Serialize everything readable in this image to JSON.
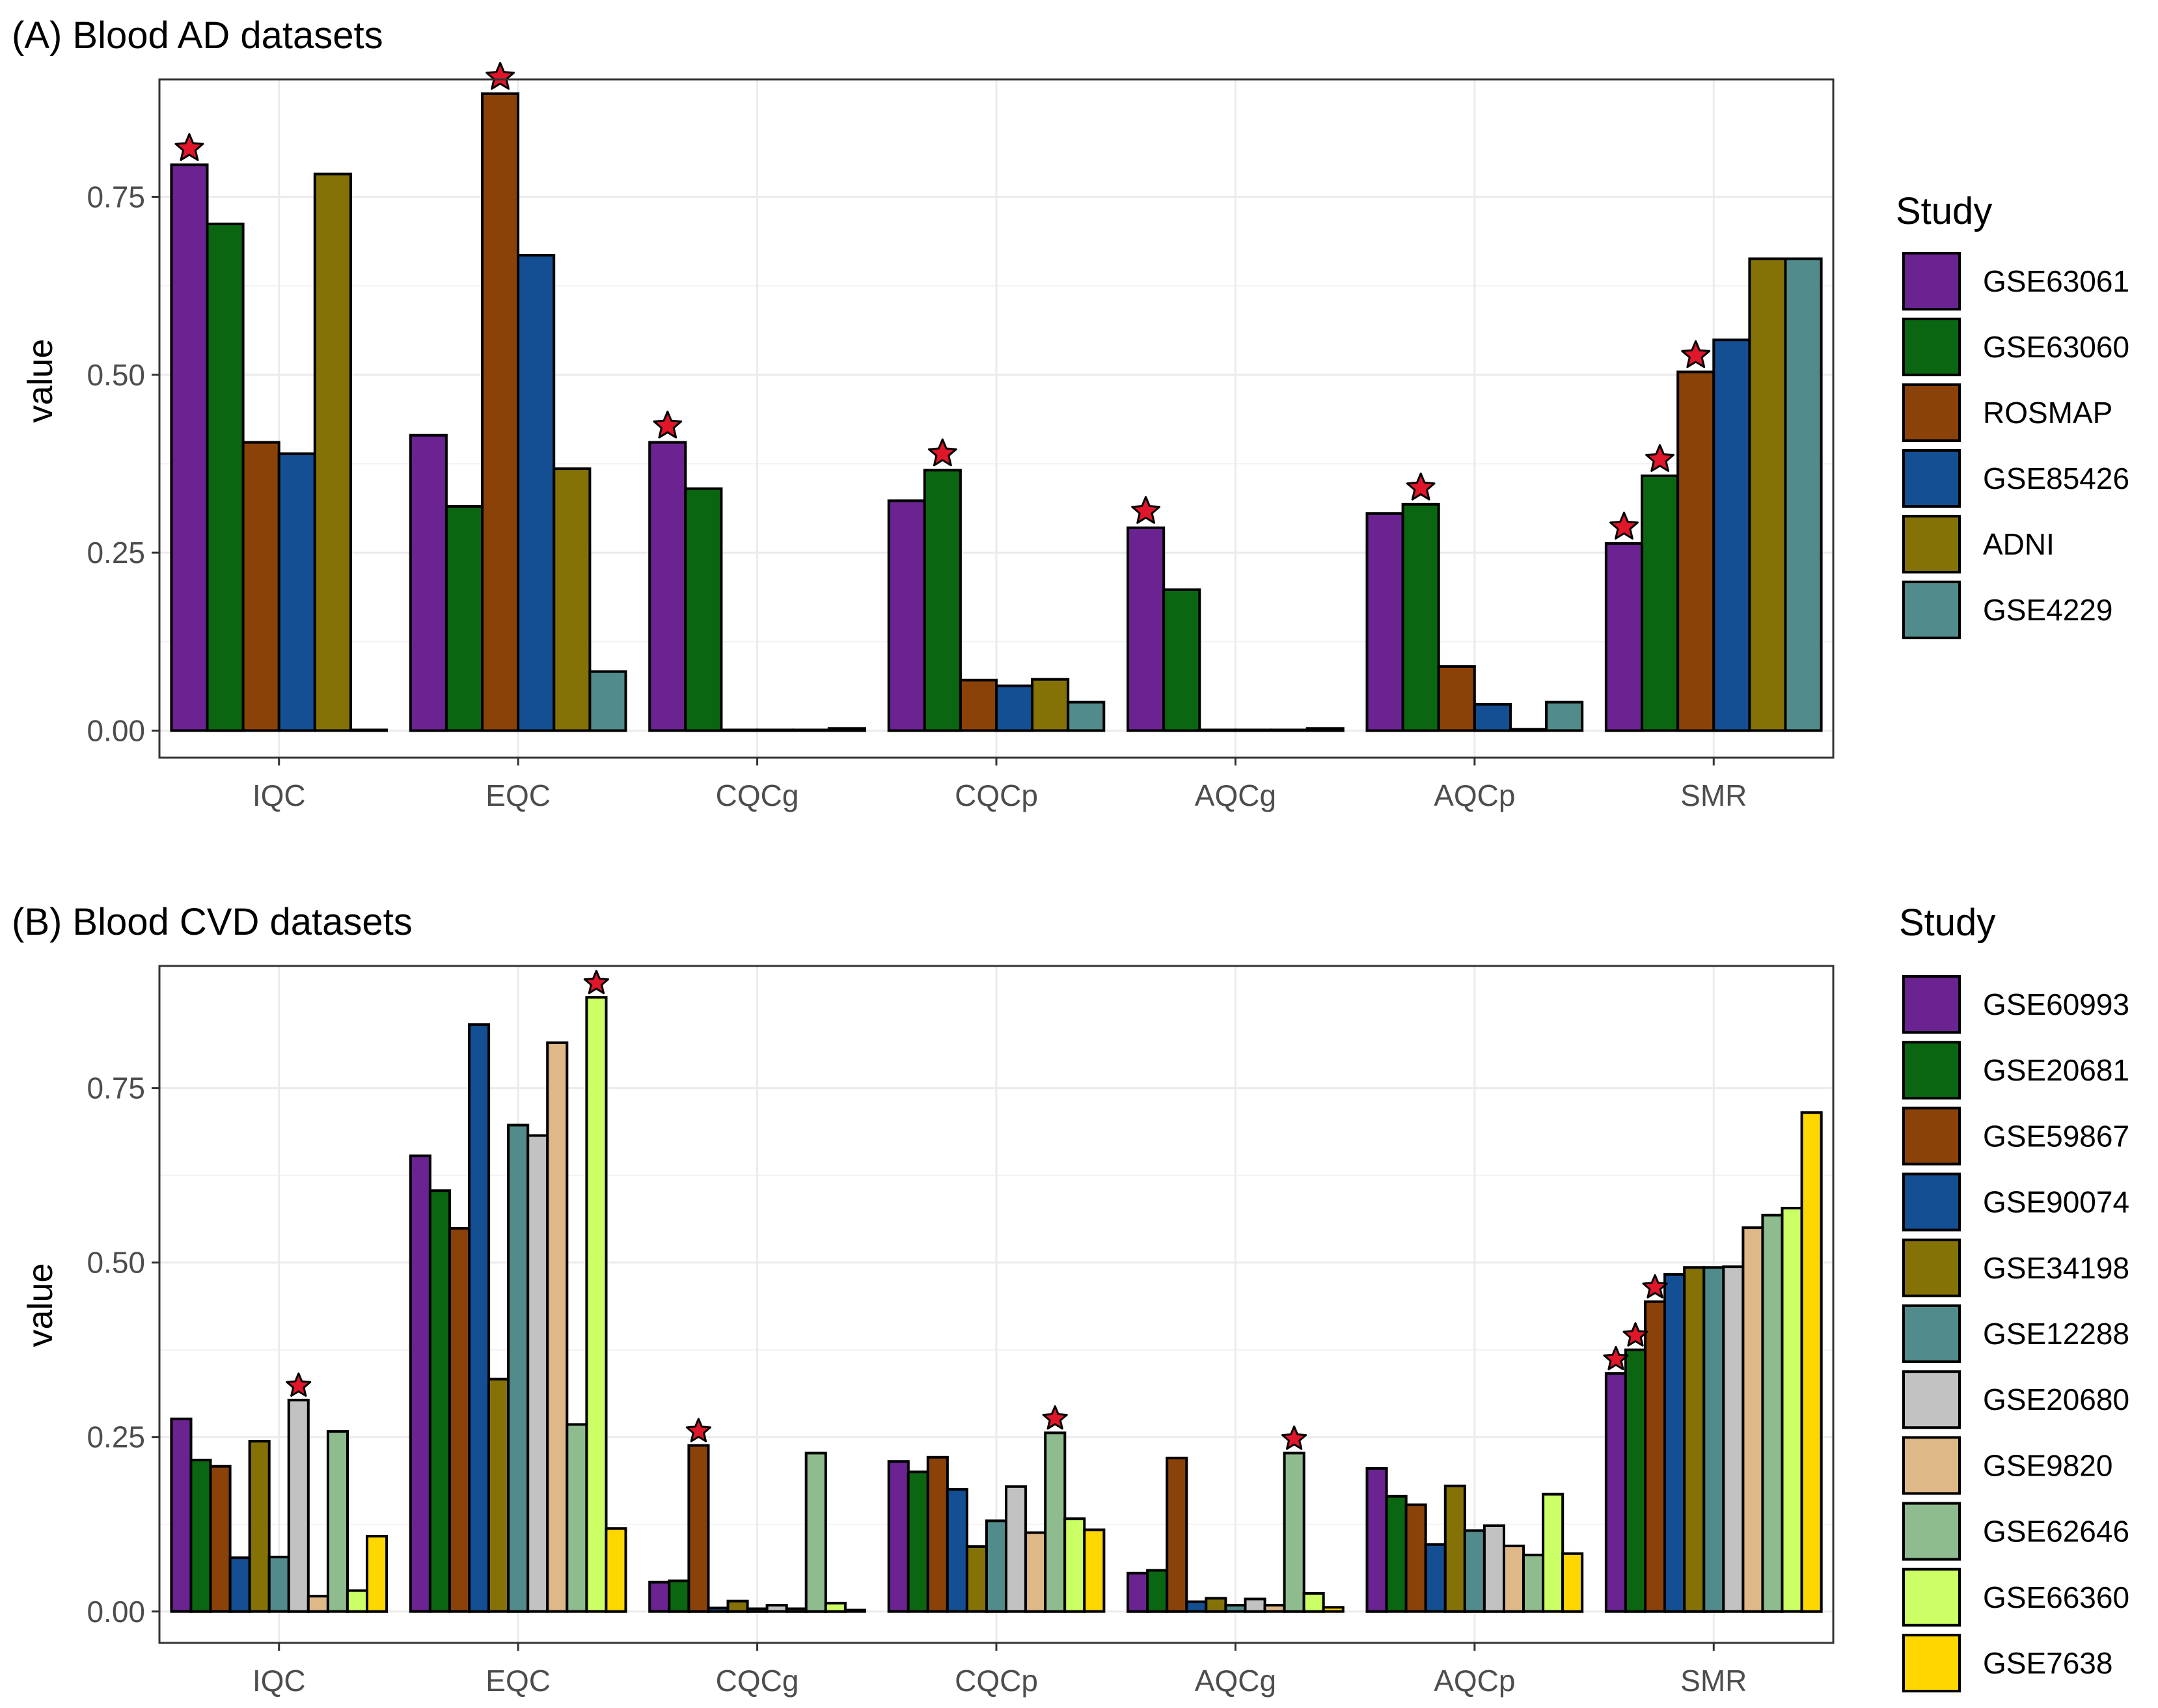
{
  "chart_data": [
    {
      "type": "bar",
      "title": "(A) Blood AD datasets",
      "xlabel": "",
      "ylabel": "value",
      "ylim": [
        -0.038,
        0.915
      ],
      "yticks": [
        "0.00",
        "0.25",
        "0.50",
        "0.75"
      ],
      "legend_title": "Study",
      "legend_position": "right",
      "categories": [
        "IQC",
        "EQC",
        "CQCg",
        "CQCp",
        "AQCg",
        "AQCp",
        "SMR"
      ],
      "series": [
        {
          "name": "GSE63061",
          "color": "#6A2391",
          "values": [
            0.795,
            0.415,
            0.405,
            0.323,
            0.285,
            0.305,
            0.263
          ],
          "stars": [
            true,
            false,
            true,
            false,
            true,
            false,
            true
          ]
        },
        {
          "name": "GSE63060",
          "color": "#0B6611",
          "values": [
            0.712,
            0.315,
            0.34,
            0.366,
            0.198,
            0.318,
            0.358
          ],
          "stars": [
            false,
            false,
            false,
            true,
            false,
            true,
            true
          ]
        },
        {
          "name": "ROSMAP",
          "color": "#8B4209",
          "values": [
            0.405,
            0.895,
            0.001,
            0.071,
            0.001,
            0.09,
            0.504
          ],
          "stars": [
            false,
            true,
            false,
            false,
            false,
            false,
            true
          ]
        },
        {
          "name": "GSE85426",
          "color": "#134F92",
          "values": [
            0.389,
            0.668,
            0.001,
            0.063,
            0.001,
            0.037,
            0.549
          ],
          "stars": [
            false,
            false,
            false,
            false,
            false,
            false,
            false
          ]
        },
        {
          "name": "ADNI",
          "color": "#847207",
          "values": [
            0.782,
            0.368,
            0.001,
            0.072,
            0.001,
            0.002,
            0.663
          ],
          "stars": [
            false,
            false,
            false,
            false,
            false,
            false,
            false
          ]
        },
        {
          "name": "GSE4229",
          "color": "#528B8B",
          "values": [
            0.001,
            0.083,
            0.003,
            0.04,
            0.003,
            0.04,
            0.663
          ],
          "stars": [
            false,
            false,
            false,
            false,
            false,
            false,
            false
          ]
        }
      ]
    },
    {
      "type": "bar",
      "title": "(B) Blood CVD datasets",
      "xlabel": "",
      "ylabel": "value",
      "ylim": [
        -0.045,
        0.925
      ],
      "yticks": [
        "0.00",
        "0.25",
        "0.50",
        "0.75"
      ],
      "legend_title": "Study",
      "legend_position": "right",
      "categories": [
        "IQC",
        "EQC",
        "CQCg",
        "CQCp",
        "AQCg",
        "AQCp",
        "SMR"
      ],
      "series": [
        {
          "name": "GSE60993",
          "color": "#6A2391",
          "values": [
            0.276,
            0.653,
            0.042,
            0.215,
            0.055,
            0.205,
            0.341
          ],
          "stars": [
            false,
            false,
            false,
            false,
            false,
            false,
            true
          ]
        },
        {
          "name": "GSE20681",
          "color": "#0B6611",
          "values": [
            0.217,
            0.603,
            0.044,
            0.2,
            0.059,
            0.165,
            0.375
          ],
          "stars": [
            false,
            false,
            false,
            false,
            false,
            false,
            true
          ]
        },
        {
          "name": "GSE59867",
          "color": "#8B4209",
          "values": [
            0.208,
            0.549,
            0.238,
            0.221,
            0.22,
            0.153,
            0.444
          ],
          "stars": [
            false,
            false,
            true,
            false,
            false,
            false,
            true
          ]
        },
        {
          "name": "GSE90074",
          "color": "#134F92",
          "values": [
            0.077,
            0.841,
            0.005,
            0.175,
            0.014,
            0.096,
            0.483
          ],
          "stars": [
            false,
            false,
            false,
            false,
            false,
            false,
            false
          ]
        },
        {
          "name": "GSE34198",
          "color": "#847207",
          "values": [
            0.244,
            0.333,
            0.015,
            0.093,
            0.019,
            0.18,
            0.493
          ],
          "stars": [
            false,
            false,
            false,
            false,
            false,
            false,
            false
          ]
        },
        {
          "name": "GSE12288",
          "color": "#528B8B",
          "values": [
            0.078,
            0.697,
            0.004,
            0.13,
            0.009,
            0.116,
            0.493
          ],
          "stars": [
            false,
            false,
            false,
            false,
            false,
            false,
            false
          ]
        },
        {
          "name": "GSE20680",
          "color": "#C2C2C2",
          "values": [
            0.303,
            0.682,
            0.009,
            0.179,
            0.018,
            0.123,
            0.494
          ],
          "stars": [
            true,
            false,
            false,
            false,
            false,
            false,
            false
          ]
        },
        {
          "name": "GSE9820",
          "color": "#DFB888",
          "values": [
            0.022,
            0.815,
            0.004,
            0.113,
            0.009,
            0.094,
            0.55
          ],
          "stars": [
            false,
            false,
            false,
            false,
            false,
            false,
            false
          ]
        },
        {
          "name": "GSE62646",
          "color": "#8FBC8F",
          "values": [
            0.258,
            0.268,
            0.227,
            0.256,
            0.227,
            0.081,
            0.568
          ],
          "stars": [
            false,
            false,
            false,
            true,
            true,
            false,
            false
          ]
        },
        {
          "name": "GSE66360",
          "color": "#CCFF66",
          "values": [
            0.03,
            0.88,
            0.012,
            0.133,
            0.026,
            0.168,
            0.578
          ],
          "stars": [
            false,
            true,
            false,
            false,
            false,
            false,
            false
          ]
        },
        {
          "name": "GSE7638",
          "color": "#FFD700",
          "values": [
            0.108,
            0.119,
            0.002,
            0.117,
            0.006,
            0.083,
            0.715
          ],
          "stars": [
            false,
            false,
            false,
            false,
            false,
            false,
            false
          ]
        }
      ]
    }
  ]
}
